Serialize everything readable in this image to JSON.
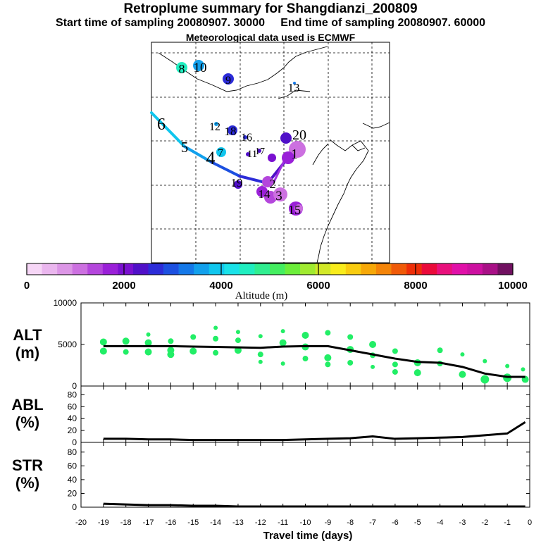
{
  "header": {
    "title": "Retroplume summary for Shangdianzi_200809",
    "start_time": "Start time of sampling 20080907. 30000",
    "end_time": "End time of sampling 20080907. 60000",
    "met_data": "Meteorological data used is ECMWF"
  },
  "colors": {
    "scale": [
      "#f6d6f6",
      "#eab6ee",
      "#dc96e6",
      "#cc70e0",
      "#b446dc",
      "#9a20d8",
      "#7a10d0",
      "#5010c8",
      "#2c2cd8",
      "#1c50e0",
      "#1478e8",
      "#12a0ec",
      "#10c6ee",
      "#1ae2e8",
      "#20eec0",
      "#30ee90",
      "#44ee60",
      "#6cee3a",
      "#a0ea30",
      "#d2e828",
      "#f8ec1c",
      "#f8cc10",
      "#f6a808",
      "#f48408",
      "#f05a08",
      "#ee2e08",
      "#ea0a3a",
      "#e8107c",
      "#e010a8",
      "#cc10a0",
      "#a81086",
      "#701060"
    ],
    "alt_points": "#22ee66",
    "line": "#000000"
  },
  "colorbar": {
    "ticks": [
      "0",
      "2000",
      "4000",
      "6000",
      "8000",
      "10000"
    ],
    "label": "Altitude (m)"
  },
  "map_labels": [
    "1",
    "2",
    "3",
    "4",
    "5",
    "6",
    "7",
    "8",
    "9",
    "10",
    "11",
    "12",
    "13",
    "14",
    "15",
    "16",
    "17",
    "18",
    "19",
    "20"
  ],
  "chart_data": [
    {
      "type": "scatter",
      "panel": "ALT",
      "ylabel": "ALT\n(m)",
      "ylabel_lines": [
        "ALT",
        "(m)"
      ],
      "xlim": [
        -20,
        0
      ],
      "ylim": [
        0,
        10000
      ],
      "yticks": [
        "0",
        "5000",
        "10000"
      ],
      "mean_line": {
        "x": [
          -19,
          -18,
          -17,
          -16,
          -15,
          -14,
          -13,
          -12,
          -11,
          -10,
          -9,
          -8,
          -7,
          -6,
          -5,
          -4,
          -3,
          -2,
          -1,
          -0.2
        ],
        "y": [
          4800,
          4800,
          4800,
          4800,
          4750,
          4700,
          4650,
          4600,
          4750,
          4800,
          4800,
          4300,
          3800,
          3300,
          2900,
          2800,
          2300,
          1500,
          1100,
          1100
        ]
      },
      "points": {
        "x": [
          -19,
          -19,
          -18,
          -18,
          -17,
          -17,
          -17,
          -16,
          -16,
          -16,
          -15,
          -15,
          -14,
          -14,
          -14,
          -13,
          -13,
          -13,
          -12,
          -12,
          -12,
          -11,
          -11,
          -11,
          -10,
          -10,
          -10,
          -9,
          -9,
          -9,
          -8,
          -8,
          -8,
          -7,
          -7,
          -7,
          -6,
          -6,
          -6,
          -5,
          -5,
          -4,
          -4,
          -3,
          -3,
          -2,
          -2,
          -1,
          -1,
          -0.3,
          -0.2
        ],
        "y": [
          5300,
          4200,
          5400,
          4100,
          6200,
          5200,
          4100,
          5400,
          4300,
          3800,
          5900,
          4200,
          7000,
          5700,
          4000,
          6500,
          5500,
          4300,
          6000,
          3800,
          2900,
          6600,
          5200,
          2700,
          6100,
          4700,
          3300,
          6400,
          3400,
          2600,
          5900,
          4400,
          2800,
          5000,
          3700,
          2300,
          4200,
          2600,
          1700,
          2800,
          1600,
          4300,
          2700,
          3800,
          1400,
          3000,
          800,
          2400,
          1000,
          2000,
          800
        ],
        "sizes": [
          5,
          5,
          5,
          4,
          3,
          5,
          5,
          4,
          5,
          5,
          4,
          5,
          3,
          4,
          4,
          3,
          4,
          5,
          3,
          4,
          3,
          3,
          5,
          3,
          5,
          5,
          4,
          4,
          5,
          4,
          4,
          5,
          4,
          5,
          4,
          3,
          4,
          4,
          4,
          5,
          5,
          4,
          4,
          3,
          5,
          3,
          6,
          3,
          6,
          3,
          5
        ]
      }
    },
    {
      "type": "line",
      "panel": "ABL",
      "ylabel": "ABL\n(%)",
      "ylabel_lines": [
        "ABL",
        "(%)"
      ],
      "xlim": [
        -20,
        0
      ],
      "ylim": [
        0,
        90
      ],
      "yticks": [
        "0",
        "20",
        "40",
        "60",
        "80"
      ],
      "x": [
        -19,
        -18,
        -17,
        -16,
        -15,
        -14,
        -13,
        -12,
        -11,
        -10,
        -9,
        -8,
        -7,
        -6,
        -5,
        -4,
        -3,
        -2,
        -1,
        -0.2
      ],
      "y": [
        6,
        6,
        5,
        5,
        4,
        4,
        4,
        4,
        4,
        5,
        6,
        7,
        10,
        6,
        7,
        8,
        9,
        12,
        15,
        34
      ]
    },
    {
      "type": "line",
      "panel": "STR",
      "ylabel": "STR\n(%)",
      "ylabel_lines": [
        "STR",
        "(%)"
      ],
      "xlim": [
        -20,
        0
      ],
      "ylim": [
        0,
        90
      ],
      "yticks": [
        "0",
        "20",
        "40",
        "60",
        "80"
      ],
      "xticks": [
        "-20",
        "-19",
        "-18",
        "-17",
        "-16",
        "-15",
        "-14",
        "-13",
        "-12",
        "-11",
        "-10",
        "-9",
        "-8",
        "-7",
        "-6",
        "-5",
        "-4",
        "-3",
        "-2",
        "-1",
        "0"
      ],
      "xlabel": "Travel time (days)",
      "x": [
        -19,
        -18,
        -17,
        -16,
        -15,
        -14,
        -13,
        -12,
        -11,
        -10,
        -9,
        -8,
        -7,
        -6,
        -5,
        -4,
        -3,
        -2,
        -1,
        -0.2
      ],
      "y": [
        5,
        4,
        3,
        3,
        2,
        2,
        1,
        1,
        1,
        1,
        1,
        1,
        1,
        1,
        1,
        1,
        1,
        1,
        1,
        1
      ]
    }
  ]
}
